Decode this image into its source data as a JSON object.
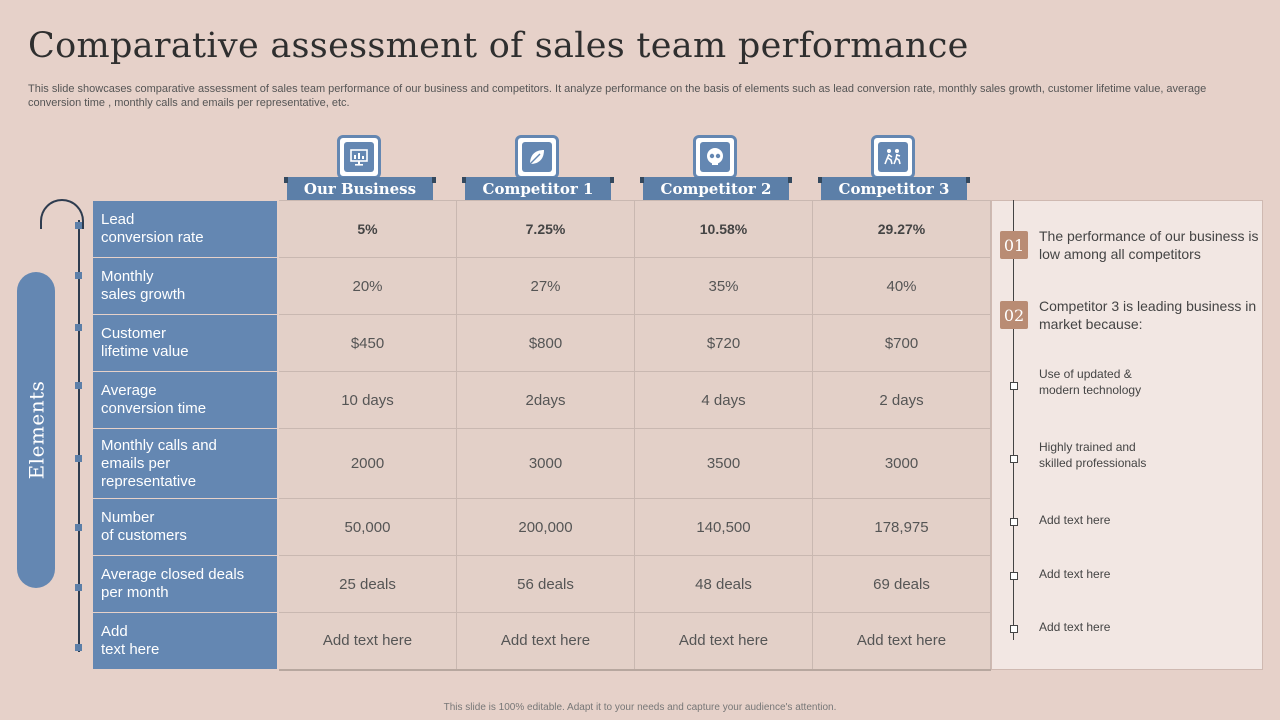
{
  "title": "Comparative assessment of sales team performance",
  "subtitle": "This slide showcases comparative assessment of sales team performance of our business and competitors. It analyze performance on the basis of elements such as lead conversion rate, monthly sales growth, customer lifetime value, average conversion time , monthly calls and emails per representative, etc.",
  "side_label": "Elements",
  "columns": [
    {
      "label": "Our Business",
      "icon": "monitor-chart-icon"
    },
    {
      "label": "Competitor 1",
      "icon": "leaf-icon"
    },
    {
      "label": "Competitor 2",
      "icon": "skull-icon"
    },
    {
      "label": "Competitor 3",
      "icon": "running-people-icon"
    }
  ],
  "rows": [
    {
      "label": [
        "Lead",
        "conversion rate"
      ],
      "values": [
        "5%",
        "7.25%",
        "10.58%",
        "29.27%"
      ]
    },
    {
      "label": [
        "Monthly",
        "sales growth"
      ],
      "values": [
        "20%",
        "27%",
        "35%",
        "40%"
      ]
    },
    {
      "label": [
        "Customer",
        "lifetime value"
      ],
      "values": [
        "$450",
        "$800",
        "$720",
        "$700"
      ]
    },
    {
      "label": [
        "Average",
        "conversion time"
      ],
      "values": [
        "10 days",
        "2days",
        "4 days",
        "2 days"
      ]
    },
    {
      "label": [
        "Monthly calls and",
        "emails per",
        "representative"
      ],
      "values": [
        "2000",
        "3000",
        "3500",
        "3000"
      ]
    },
    {
      "label": [
        "Number",
        "of customers"
      ],
      "values": [
        "50,000",
        "200,000",
        "140,500",
        "178,975"
      ]
    },
    {
      "label": [
        "Average  closed deals",
        "per month"
      ],
      "values": [
        "25 deals",
        "56 deals",
        "48 deals",
        "69 deals"
      ]
    },
    {
      "label": [
        "Add",
        "text here"
      ],
      "values": [
        "Add text here",
        "Add text here",
        "Add text here",
        "Add text here"
      ]
    }
  ],
  "panel": {
    "points": [
      {
        "num": "01",
        "text": "The performance of our business is low among all competitors"
      },
      {
        "num": "02",
        "text": "Competitor 3 is leading business in market because:"
      }
    ],
    "bullets": [
      "Use of updated & modern technology",
      "Highly trained and skilled professionals",
      "Add text here",
      "Add text here",
      "Add text here"
    ]
  },
  "footer": "This slide is 100% editable. Adapt it to your needs and capture your audience's attention.",
  "colors": {
    "background": "#e6d1c9",
    "accent_blue": "#6487b2",
    "badge_brown": "#b98c74",
    "panel": "#f2e7e3"
  }
}
